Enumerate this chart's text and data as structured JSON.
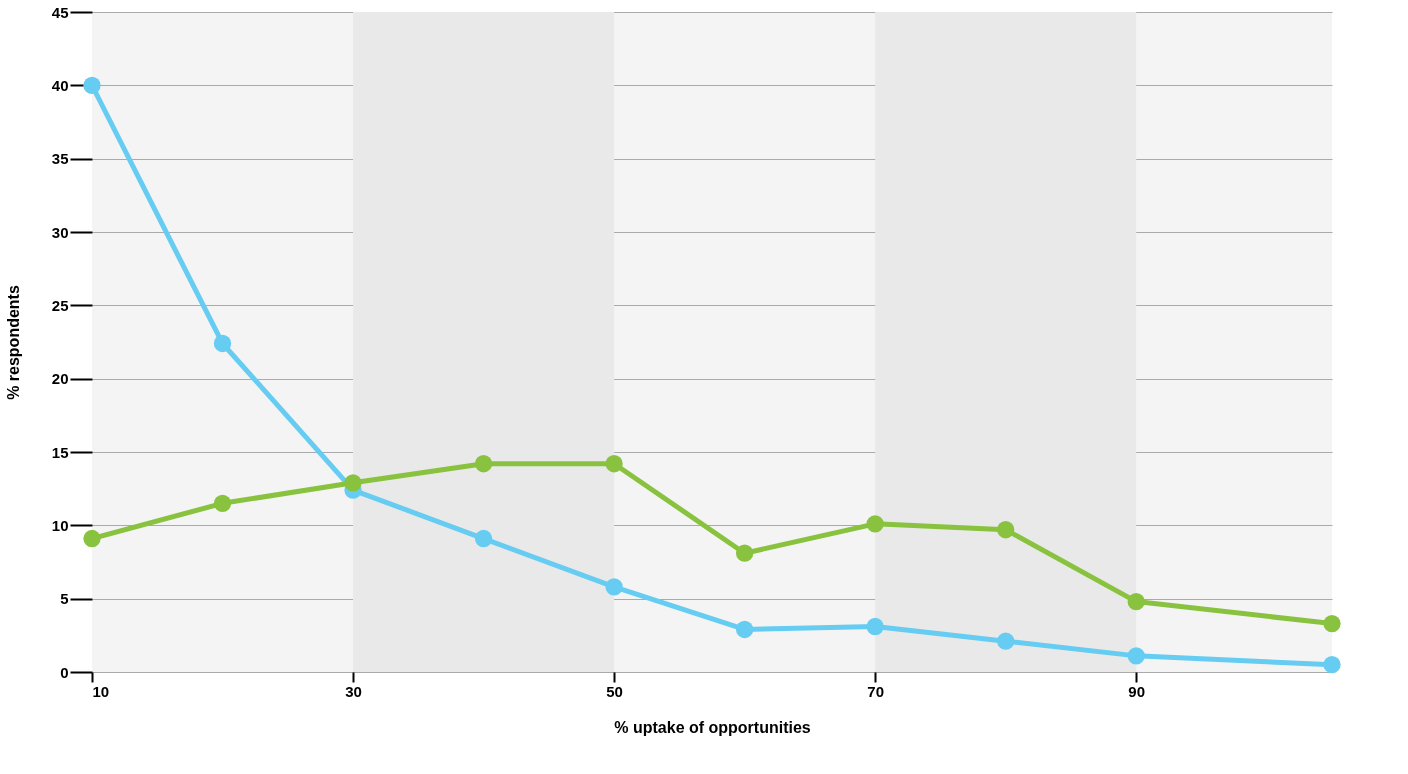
{
  "chart_data": {
    "type": "line",
    "xlabel": "% uptake of opportunities",
    "ylabel": "% respondents",
    "x": [
      10,
      20,
      30,
      40,
      50,
      60,
      70,
      80,
      90,
      105
    ],
    "series": [
      {
        "color": "#66ccf2",
        "values": [
          40,
          22.4,
          12.4,
          9.1,
          5.8,
          2.9,
          3.1,
          2.1,
          1.1,
          0.5
        ]
      },
      {
        "color": "#88c23f",
        "values": [
          9.1,
          11.5,
          12.9,
          14.2,
          14.2,
          8.1,
          10.1,
          9.7,
          4.8,
          3.3
        ]
      }
    ],
    "xlim": [
      10,
      105
    ],
    "xticks": [
      10,
      30,
      50,
      70,
      90
    ],
    "ylim": [
      0,
      45
    ],
    "yticks": [
      0,
      5,
      10,
      15,
      20,
      25,
      30,
      35,
      40,
      45
    ],
    "grid": "y",
    "marker": "circle",
    "line_style": "solid",
    "bands": [
      {
        "axis": "x",
        "from": 30,
        "to": 50,
        "color": "#e9e9e9"
      },
      {
        "axis": "x",
        "from": 70,
        "to": 90,
        "color": "#e9e9e9"
      }
    ]
  }
}
